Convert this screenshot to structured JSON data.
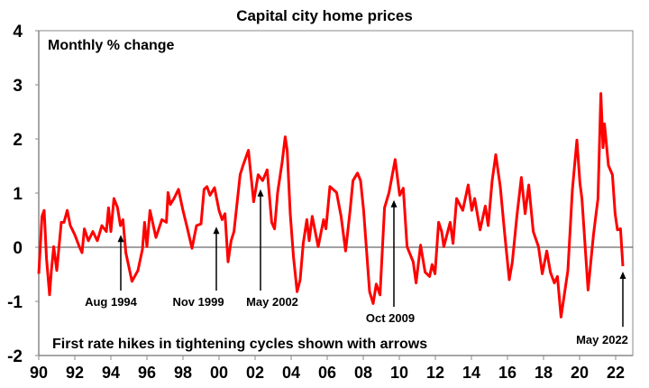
{
  "chart_data": {
    "type": "line",
    "title": "Capital city home prices",
    "subtitle": "Monthly % change",
    "note": "First rate hikes in tightening cycles shown with arrows",
    "xlabel": "",
    "ylabel": "",
    "xlim": [
      1990,
      2022.95
    ],
    "ylim": [
      -2,
      4
    ],
    "grid": false,
    "line_color": "#ff0000",
    "y_ticks": [
      -2,
      -1,
      0,
      1,
      2,
      3,
      4
    ],
    "y_tick_labels": [
      "-2",
      "-1",
      "0",
      "1",
      "2",
      "3",
      "4"
    ],
    "x_ticks": [
      1990,
      1992,
      1994,
      1996,
      1998,
      2000,
      2002,
      2004,
      2006,
      2008,
      2010,
      2012,
      2014,
      2016,
      2018,
      2020,
      2022
    ],
    "x_tick_labels": [
      "90",
      "92",
      "94",
      "96",
      "98",
      "00",
      "02",
      "04",
      "06",
      "08",
      "10",
      "12",
      "14",
      "16",
      "18",
      "20",
      "22"
    ],
    "series": [
      {
        "name": "Monthly % change",
        "x": [
          1990.0,
          1990.18,
          1990.3,
          1990.43,
          1990.6,
          1990.7,
          1990.83,
          1991.0,
          1991.25,
          1991.4,
          1991.58,
          1991.75,
          1992.0,
          1992.25,
          1992.4,
          1992.53,
          1992.75,
          1993.0,
          1993.25,
          1993.5,
          1993.75,
          1993.87,
          1994.0,
          1994.17,
          1994.37,
          1994.53,
          1994.67,
          1994.83,
          1995.17,
          1995.5,
          1995.75,
          1995.87,
          1996.0,
          1996.17,
          1996.5,
          1996.83,
          1997.08,
          1997.17,
          1997.3,
          1997.5,
          1997.75,
          1998.0,
          1998.25,
          1998.5,
          1998.75,
          1999.0,
          1999.17,
          1999.33,
          1999.5,
          1999.75,
          2000.0,
          2000.17,
          2000.33,
          2000.5,
          2000.67,
          2000.83,
          2001.17,
          2001.33,
          2001.63,
          2001.92,
          2002.17,
          2002.42,
          2002.67,
          2002.92,
          2003.08,
          2003.25,
          2003.5,
          2003.67,
          2003.78,
          2003.95,
          2004.13,
          2004.33,
          2004.5,
          2004.67,
          2004.87,
          2005.0,
          2005.17,
          2005.5,
          2005.8,
          2005.93,
          2006.15,
          2006.52,
          2006.77,
          2007.02,
          2007.27,
          2007.43,
          2007.68,
          2007.85,
          2008.02,
          2008.35,
          2008.55,
          2008.72,
          2008.93,
          2009.18,
          2009.43,
          2009.77,
          2010.02,
          2010.22,
          2010.43,
          2010.77,
          2010.93,
          2011.18,
          2011.43,
          2011.68,
          2011.82,
          2011.98,
          2012.18,
          2012.35,
          2012.47,
          2012.82,
          2012.98,
          2013.18,
          2013.52,
          2013.82,
          2014.02,
          2014.18,
          2014.48,
          2014.77,
          2014.93,
          2015.15,
          2015.35,
          2015.6,
          2015.85,
          2016.1,
          2016.27,
          2016.52,
          2016.77,
          2016.98,
          2017.18,
          2017.43,
          2017.72,
          2017.93,
          2018.18,
          2018.38,
          2018.6,
          2018.77,
          2018.97,
          2019.35,
          2019.6,
          2019.85,
          2020.02,
          2020.13,
          2020.47,
          2020.77,
          2021.02,
          2021.18,
          2021.3,
          2021.38,
          2021.6,
          2021.82,
          2021.97,
          2022.1,
          2022.27,
          2022.4
        ],
        "y": [
          -0.49,
          0.57,
          0.68,
          -0.21,
          -0.88,
          -0.43,
          0.01,
          -0.43,
          0.46,
          0.46,
          0.68,
          0.4,
          0.23,
          0.01,
          -0.1,
          0.34,
          0.12,
          0.29,
          0.12,
          0.4,
          0.29,
          0.73,
          0.29,
          0.9,
          0.73,
          0.4,
          0.51,
          -0.1,
          -0.63,
          -0.43,
          -0.04,
          0.46,
          0.01,
          0.68,
          0.18,
          0.51,
          0.46,
          1.01,
          0.79,
          0.9,
          1.07,
          0.68,
          0.34,
          -0.02,
          0.4,
          0.43,
          1.07,
          1.12,
          0.96,
          1.1,
          0.68,
          0.51,
          0.62,
          -0.27,
          0.12,
          0.29,
          1.34,
          1.51,
          1.79,
          0.84,
          1.34,
          1.23,
          1.43,
          0.46,
          0.34,
          1.01,
          1.57,
          2.04,
          1.79,
          0.62,
          -0.18,
          -0.82,
          -0.6,
          0.07,
          0.51,
          0.12,
          0.57,
          0.01,
          0.51,
          0.34,
          1.12,
          1.01,
          0.57,
          -0.07,
          0.68,
          1.23,
          1.37,
          1.23,
          0.68,
          -0.82,
          -1.04,
          -0.68,
          -0.88,
          0.73,
          1.01,
          1.62,
          0.96,
          1.09,
          0.01,
          -0.27,
          -0.66,
          0.04,
          -0.46,
          -0.54,
          -0.32,
          -0.49,
          0.46,
          0.29,
          0.01,
          0.46,
          0.07,
          0.9,
          0.68,
          1.15,
          0.68,
          0.9,
          0.32,
          0.76,
          0.4,
          1.23,
          1.71,
          1.12,
          0.23,
          -0.6,
          -0.27,
          0.57,
          1.29,
          0.62,
          1.15,
          0.29,
          0.01,
          -0.49,
          -0.07,
          -0.46,
          -0.66,
          -0.54,
          -1.29,
          -0.43,
          1.06,
          1.98,
          1.18,
          0.9,
          -0.79,
          0.23,
          0.9,
          2.84,
          1.84,
          2.28,
          1.51,
          1.34,
          0.62,
          0.32,
          0.34,
          -0.35
        ]
      }
    ],
    "annotations": [
      {
        "label": "Aug 1994",
        "x": 1994.55,
        "tip": 0.23,
        "tail": -0.8,
        "label_x": 1994.0,
        "label_y": -1.0
      },
      {
        "label": "Nov 1999",
        "x": 1999.85,
        "tip": 0.38,
        "tail": -0.8,
        "label_x": 1998.85,
        "label_y": -1.0
      },
      {
        "label": "May 2002",
        "x": 2002.3,
        "tip": 1.07,
        "tail": -0.8,
        "label_x": 2002.95,
        "label_y": -1.0
      },
      {
        "label": "Oct 2009",
        "x": 2009.7,
        "tip": 0.87,
        "tail": -1.1,
        "label_x": 2009.5,
        "label_y": -1.3
      },
      {
        "label": "May 2022",
        "x": 2022.4,
        "tip": -0.45,
        "tail": -1.47,
        "label_x": 2021.25,
        "label_y": -1.7
      }
    ]
  }
}
